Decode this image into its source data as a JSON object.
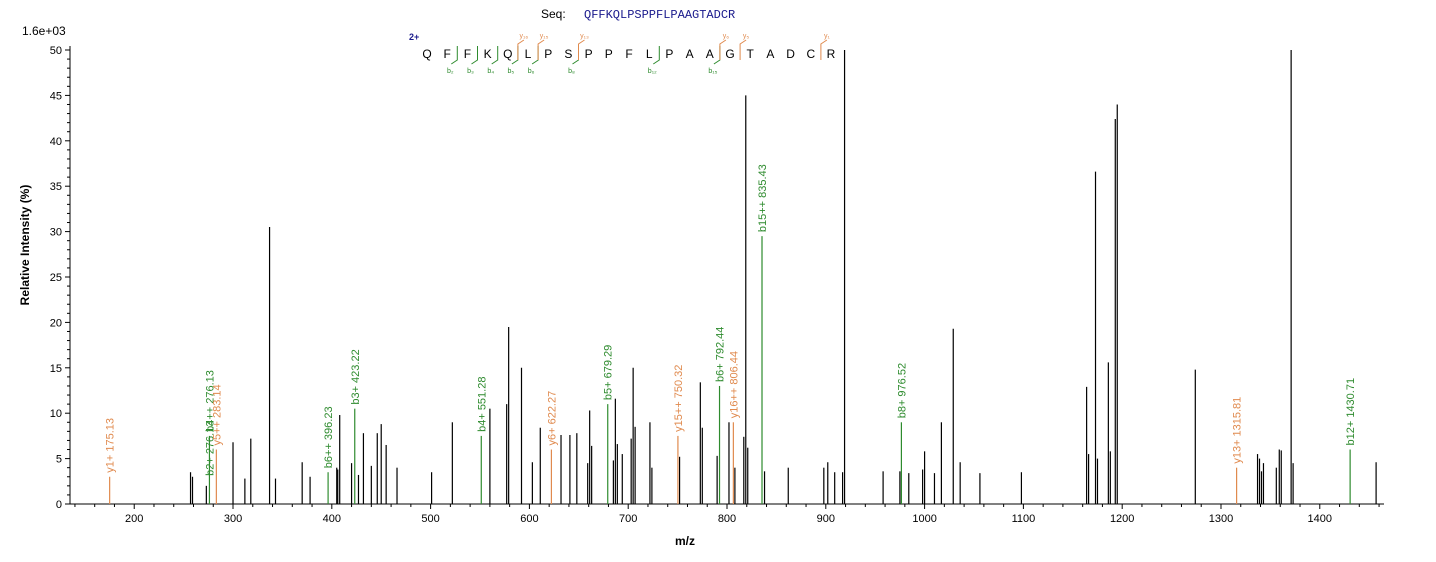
{
  "sequence_label": "Seq:",
  "sequence": "QFFKQLPSPPFLPAAGTADCR",
  "max_intensity_label": "1.6e+03",
  "charge_label": "2+",
  "colors": {
    "b": "#2e8b2e",
    "y": "#e08a4e",
    "unassigned": "#000000",
    "axis": "#000000",
    "seq": "#1a1a8c"
  },
  "fragment_map": {
    "residues": [
      "Q",
      "F",
      "F",
      "K",
      "Q",
      "L",
      "P",
      "S",
      "P",
      "P",
      "F",
      "L",
      "P",
      "A",
      "A",
      "G",
      "T",
      "A",
      "D",
      "C",
      "R"
    ],
    "b_marks": [
      {
        "after": 2,
        "label": "b₂"
      },
      {
        "after": 3,
        "label": "b₃"
      },
      {
        "after": 4,
        "label": "b₄"
      },
      {
        "after": 5,
        "label": "b₅"
      },
      {
        "after": 6,
        "label": "b₆"
      },
      {
        "after": 8,
        "label": "b₈"
      },
      {
        "after": 12,
        "label": "b₁₂"
      },
      {
        "after": 15,
        "label": "b₁₅"
      }
    ],
    "y_marks": [
      {
        "after": 5,
        "label": "y₁₆"
      },
      {
        "after": 6,
        "label": "y₁₅"
      },
      {
        "after": 8,
        "label": "y₁₃"
      },
      {
        "after": 15,
        "label": "y₆"
      },
      {
        "after": 16,
        "label": "y₅"
      },
      {
        "after": 20,
        "label": "y₁"
      }
    ]
  },
  "chart_data": {
    "type": "bar",
    "title": "",
    "xlabel": "m/z",
    "ylabel": "Relative Intensity (%)",
    "xlim": [
      135,
      1465
    ],
    "ylim": [
      0,
      50
    ],
    "x_ticks": [
      200,
      300,
      400,
      500,
      600,
      700,
      800,
      900,
      1000,
      1100,
      1200,
      1300,
      1400
    ],
    "y_ticks": [
      0,
      5,
      10,
      15,
      20,
      25,
      30,
      35,
      40,
      45,
      50
    ],
    "annotated_peaks": [
      {
        "x": 175.13,
        "y": 3.0,
        "type": "y",
        "label": "y1+ 175.13"
      },
      {
        "x": 276.13,
        "y": 7.5,
        "type": "b",
        "label": "b4++ 276.13"
      },
      {
        "x": 276.13,
        "y": 7.5,
        "type": "b",
        "label": "b2+ 276.13"
      },
      {
        "x": 283.14,
        "y": 6.0,
        "type": "y",
        "label": "y5++ 283.14"
      },
      {
        "x": 396.23,
        "y": 3.5,
        "type": "b",
        "label": "b6++ 396.23"
      },
      {
        "x": 423.22,
        "y": 10.5,
        "type": "b",
        "label": "b3+ 423.22"
      },
      {
        "x": 551.28,
        "y": 7.5,
        "type": "b",
        "label": "b4+ 551.28"
      },
      {
        "x": 622.27,
        "y": 6.0,
        "type": "y",
        "label": "y6+ 622.27"
      },
      {
        "x": 679.29,
        "y": 11.0,
        "type": "b",
        "label": "b5+ 679.29"
      },
      {
        "x": 750.32,
        "y": 7.5,
        "type": "y",
        "label": "y15++ 750.32"
      },
      {
        "x": 792.44,
        "y": 13.0,
        "type": "b",
        "label": "b6+ 792.44"
      },
      {
        "x": 806.44,
        "y": 9.0,
        "type": "y",
        "label": "y16++ 806.44"
      },
      {
        "x": 835.43,
        "y": 29.5,
        "type": "b",
        "label": "b15++ 835.43"
      },
      {
        "x": 976.52,
        "y": 9.0,
        "type": "b",
        "label": "b8+ 976.52"
      },
      {
        "x": 1315.81,
        "y": 4.0,
        "type": "y",
        "label": "y13+ 1315.81"
      },
      {
        "x": 1430.71,
        "y": 6.0,
        "type": "b",
        "label": "b12+ 1430.71"
      }
    ],
    "unassigned_peaks": [
      {
        "x": 257,
        "y": 3.5
      },
      {
        "x": 259,
        "y": 3.0
      },
      {
        "x": 273,
        "y": 2.0
      },
      {
        "x": 300,
        "y": 6.8
      },
      {
        "x": 312,
        "y": 2.8
      },
      {
        "x": 318,
        "y": 7.2
      },
      {
        "x": 337,
        "y": 30.5
      },
      {
        "x": 343,
        "y": 2.8
      },
      {
        "x": 370,
        "y": 4.6
      },
      {
        "x": 378,
        "y": 3.0
      },
      {
        "x": 405,
        "y": 4.0
      },
      {
        "x": 406,
        "y": 3.8
      },
      {
        "x": 408,
        "y": 9.8
      },
      {
        "x": 420,
        "y": 4.5
      },
      {
        "x": 427,
        "y": 3.2
      },
      {
        "x": 432,
        "y": 7.8
      },
      {
        "x": 440,
        "y": 4.2
      },
      {
        "x": 446,
        "y": 7.8
      },
      {
        "x": 450,
        "y": 8.8
      },
      {
        "x": 455,
        "y": 6.5
      },
      {
        "x": 466,
        "y": 4.0
      },
      {
        "x": 501,
        "y": 3.5
      },
      {
        "x": 522,
        "y": 9.0
      },
      {
        "x": 560,
        "y": 10.5
      },
      {
        "x": 577,
        "y": 11.0
      },
      {
        "x": 579,
        "y": 19.5
      },
      {
        "x": 592,
        "y": 15.0
      },
      {
        "x": 603,
        "y": 4.6
      },
      {
        "x": 611,
        "y": 8.4
      },
      {
        "x": 632,
        "y": 7.6
      },
      {
        "x": 641,
        "y": 7.6
      },
      {
        "x": 648,
        "y": 7.8
      },
      {
        "x": 659,
        "y": 4.5
      },
      {
        "x": 661,
        "y": 10.3
      },
      {
        "x": 663,
        "y": 6.4
      },
      {
        "x": 685,
        "y": 4.8
      },
      {
        "x": 687,
        "y": 11.6
      },
      {
        "x": 689,
        "y": 6.6
      },
      {
        "x": 694,
        "y": 5.5
      },
      {
        "x": 703,
        "y": 7.2
      },
      {
        "x": 705,
        "y": 15.0
      },
      {
        "x": 707,
        "y": 8.5
      },
      {
        "x": 722,
        "y": 9.0
      },
      {
        "x": 724,
        "y": 4.0
      },
      {
        "x": 752,
        "y": 5.2
      },
      {
        "x": 773,
        "y": 13.4
      },
      {
        "x": 775,
        "y": 8.4
      },
      {
        "x": 790,
        "y": 5.3
      },
      {
        "x": 802,
        "y": 9.0
      },
      {
        "x": 808,
        "y": 4.0
      },
      {
        "x": 817,
        "y": 7.4
      },
      {
        "x": 819,
        "y": 45.0
      },
      {
        "x": 821,
        "y": 6.2
      },
      {
        "x": 838,
        "y": 3.6
      },
      {
        "x": 862,
        "y": 4.0
      },
      {
        "x": 898,
        "y": 4.0
      },
      {
        "x": 902,
        "y": 4.6
      },
      {
        "x": 909,
        "y": 3.5
      },
      {
        "x": 917,
        "y": 3.5
      },
      {
        "x": 919,
        "y": 50.0
      },
      {
        "x": 958,
        "y": 3.6
      },
      {
        "x": 975,
        "y": 3.6
      },
      {
        "x": 984,
        "y": 3.4
      },
      {
        "x": 998,
        "y": 3.8
      },
      {
        "x": 1000,
        "y": 5.8
      },
      {
        "x": 1010,
        "y": 3.4
      },
      {
        "x": 1017,
        "y": 9.0
      },
      {
        "x": 1029,
        "y": 19.3
      },
      {
        "x": 1036,
        "y": 4.6
      },
      {
        "x": 1056,
        "y": 3.4
      },
      {
        "x": 1098,
        "y": 3.5
      },
      {
        "x": 1164,
        "y": 12.9
      },
      {
        "x": 1166,
        "y": 5.5
      },
      {
        "x": 1173,
        "y": 36.6
      },
      {
        "x": 1175,
        "y": 5.0
      },
      {
        "x": 1186,
        "y": 15.6
      },
      {
        "x": 1188,
        "y": 5.8
      },
      {
        "x": 1193,
        "y": 42.4
      },
      {
        "x": 1195,
        "y": 44.0
      },
      {
        "x": 1274,
        "y": 14.8
      },
      {
        "x": 1337,
        "y": 5.5
      },
      {
        "x": 1339,
        "y": 5.0
      },
      {
        "x": 1341,
        "y": 3.6
      },
      {
        "x": 1343,
        "y": 4.5
      },
      {
        "x": 1356,
        "y": 4.0
      },
      {
        "x": 1359,
        "y": 6.0
      },
      {
        "x": 1361,
        "y": 5.9
      },
      {
        "x": 1371,
        "y": 50.0
      },
      {
        "x": 1373,
        "y": 4.5
      },
      {
        "x": 1457,
        "y": 4.6
      }
    ]
  }
}
